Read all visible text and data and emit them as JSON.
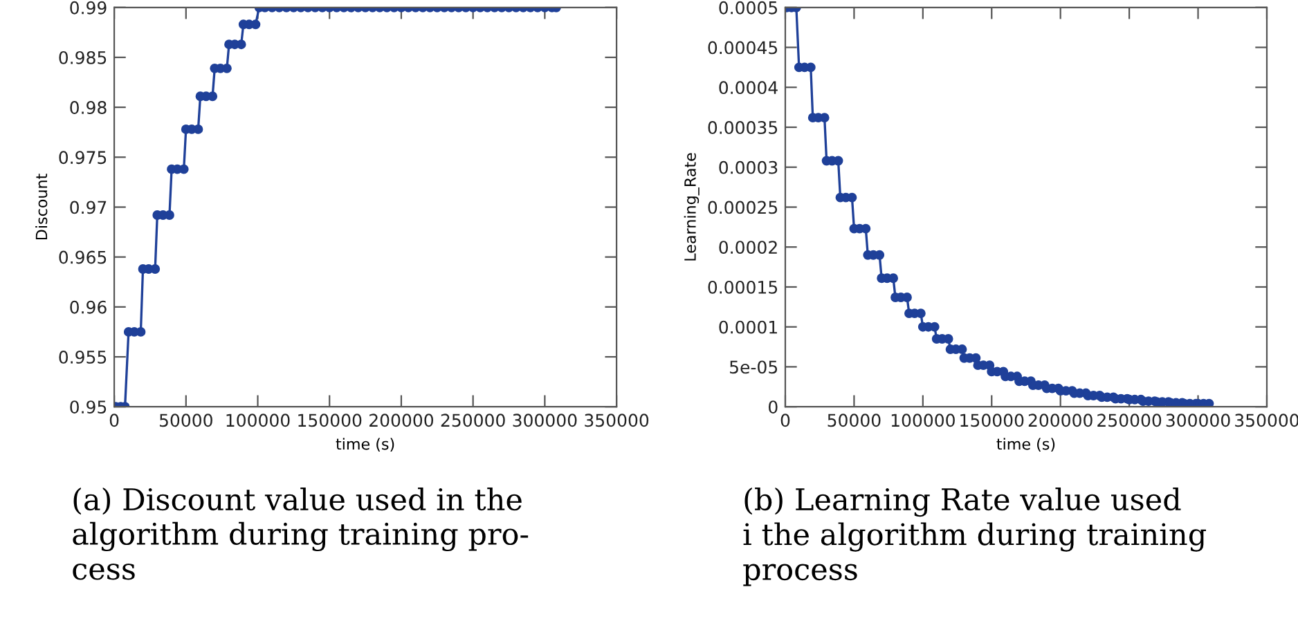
{
  "chart_data": [
    {
      "type": "line",
      "xlabel": "time (s)",
      "ylabel": "Discount",
      "marker": "circle",
      "line_style": "solid",
      "grid": false,
      "xlim": [
        0,
        350000
      ],
      "xticks": [
        0,
        50000,
        100000,
        150000,
        200000,
        250000,
        300000,
        350000
      ],
      "ylim": [
        0.95,
        0.99
      ],
      "yticks": [
        0.95,
        0.955,
        0.96,
        0.965,
        0.97,
        0.975,
        0.98,
        0.985,
        0.99
      ],
      "annotations": [
        "(a) Discount value used in the\nalgorithm during training pro-\ncess"
      ],
      "series": [
        {
          "color": "#1f4099",
          "x": [
            1000,
            4500,
            7500,
            10000,
            14000,
            18500,
            20000,
            24000,
            28500,
            30000,
            34000,
            38500,
            40000,
            44000,
            48500,
            50000,
            54000,
            58500,
            60000,
            64000,
            68500,
            70000,
            74000,
            78500,
            80000,
            84000,
            88500,
            90000,
            94000,
            98500,
            101000,
            105000,
            110000,
            115000,
            120000,
            125000,
            130000,
            135000,
            140000,
            145000,
            150000,
            155000,
            160000,
            165000,
            170000,
            175000,
            180000,
            185000,
            190000,
            195000,
            200000,
            205000,
            210000,
            215000,
            220000,
            225000,
            230000,
            235000,
            240000,
            245000,
            250000,
            255000,
            260000,
            265000,
            270000,
            275000,
            280000,
            285000,
            290000,
            295000,
            300000,
            305000,
            308000
          ],
          "values": [
            0.95,
            0.95,
            0.95,
            0.9575,
            0.9575,
            0.9575,
            0.9638,
            0.9638,
            0.9638,
            0.9692,
            0.9692,
            0.9692,
            0.9738,
            0.9738,
            0.9738,
            0.9778,
            0.9778,
            0.9778,
            0.9811,
            0.9811,
            0.9811,
            0.9839,
            0.9839,
            0.9839,
            0.9863,
            0.9863,
            0.9863,
            0.9883,
            0.9883,
            0.9883,
            0.99,
            0.99,
            0.99,
            0.99,
            0.99,
            0.99,
            0.99,
            0.99,
            0.99,
            0.99,
            0.99,
            0.99,
            0.99,
            0.99,
            0.99,
            0.99,
            0.99,
            0.99,
            0.99,
            0.99,
            0.99,
            0.99,
            0.99,
            0.99,
            0.99,
            0.99,
            0.99,
            0.99,
            0.99,
            0.99,
            0.99,
            0.99,
            0.99,
            0.99,
            0.99,
            0.99,
            0.99,
            0.99,
            0.99,
            0.99,
            0.99,
            0.99,
            0.99
          ]
        }
      ]
    },
    {
      "type": "line",
      "xlabel": "time (s)",
      "ylabel": "Learning_Rate",
      "marker": "circle",
      "line_style": "solid",
      "grid": false,
      "xlim": [
        0,
        350000
      ],
      "xticks": [
        0,
        50000,
        100000,
        150000,
        200000,
        250000,
        300000,
        350000
      ],
      "ylim": [
        0,
        0.0005
      ],
      "yticks": [
        0,
        5e-05,
        0.0001,
        0.00015,
        0.0002,
        0.00025,
        0.0003,
        0.00035,
        0.0004,
        0.00045,
        0.0005
      ],
      "annotations": [
        "(b) Learning Rate value used\ni the algorithm during training\nprocess"
      ],
      "series": [
        {
          "color": "#1f4099",
          "x": [
            1000,
            4500,
            8000,
            10000,
            14000,
            18500,
            20000,
            24000,
            28500,
            30000,
            34000,
            38500,
            40000,
            44000,
            48500,
            50000,
            54000,
            58500,
            60000,
            64000,
            68500,
            70000,
            74000,
            78500,
            80000,
            84000,
            88500,
            90000,
            94000,
            98500,
            100000,
            104000,
            108500,
            110000,
            114000,
            118500,
            120000,
            124000,
            128500,
            130000,
            134000,
            138500,
            140000,
            144000,
            148500,
            150000,
            154000,
            158500,
            160000,
            164000,
            168500,
            170000,
            174000,
            178500,
            180000,
            184000,
            188500,
            190000,
            194000,
            198500,
            200000,
            204000,
            208500,
            210000,
            214000,
            218500,
            220000,
            224000,
            228500,
            230000,
            234000,
            238500,
            240000,
            244000,
            248500,
            250000,
            254000,
            258500,
            260000,
            264000,
            268500,
            270000,
            274000,
            278500,
            280000,
            284000,
            288500,
            290000,
            294000,
            298500,
            300000,
            304000,
            308000
          ],
          "values": [
            0.0005,
            0.0005,
            0.0005,
            0.000425,
            0.000425,
            0.000425,
            0.000362,
            0.000362,
            0.000362,
            0.000308,
            0.000308,
            0.000308,
            0.000262,
            0.000262,
            0.000262,
            0.000223,
            0.000223,
            0.000223,
            0.00019,
            0.00019,
            0.00019,
            0.000161,
            0.000161,
            0.000161,
            0.000137,
            0.000137,
            0.000137,
            0.000117,
            0.000117,
            0.000117,
            0.0001,
            0.0001,
            0.0001,
            8.5e-05,
            8.5e-05,
            8.5e-05,
            7.2e-05,
            7.2e-05,
            7.2e-05,
            6.1e-05,
            6.1e-05,
            6.1e-05,
            5.2e-05,
            5.2e-05,
            5.2e-05,
            4.4e-05,
            4.4e-05,
            4.4e-05,
            3.8e-05,
            3.8e-05,
            3.8e-05,
            3.2e-05,
            3.2e-05,
            3.2e-05,
            2.7e-05,
            2.7e-05,
            2.7e-05,
            2.3e-05,
            2.3e-05,
            2.3e-05,
            2e-05,
            2e-05,
            2e-05,
            1.7e-05,
            1.7e-05,
            1.7e-05,
            1.4e-05,
            1.4e-05,
            1.4e-05,
            1.2e-05,
            1.2e-05,
            1.2e-05,
            1e-05,
            1e-05,
            1e-05,
            9e-06,
            9e-06,
            9e-06,
            7e-06,
            7e-06,
            7e-06,
            6e-06,
            6e-06,
            6e-06,
            5e-06,
            5e-06,
            5e-06,
            4e-06,
            4e-06,
            4e-06,
            4e-06,
            4e-06,
            4e-06
          ]
        }
      ]
    }
  ]
}
